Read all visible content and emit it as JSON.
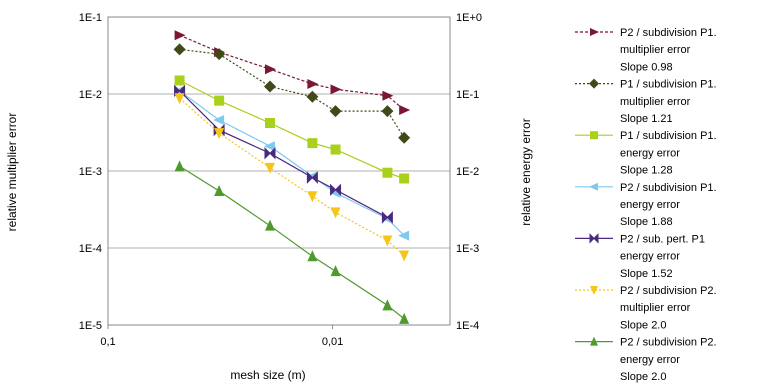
{
  "chart_data": {
    "type": "line",
    "xlabel": "mesh size (m)",
    "ylabel_left": "relative multiplier error",
    "ylabel_right": "relative energy error",
    "x_scale": "log",
    "x_reversed": true,
    "xlim": [
      0.1,
      0.003
    ],
    "x_ticks": [
      "0,1",
      "0,01"
    ],
    "y_scale_left": "log",
    "ylim_left": [
      1e-05,
      0.1
    ],
    "y_ticks_left": [
      "1E-1",
      "1E-2",
      "1E-3",
      "1E-4",
      "1E-5"
    ],
    "y_scale_right": "log",
    "ylim_right": [
      0.0001,
      1
    ],
    "y_ticks_right": [
      "1E+0",
      "1E-1",
      "1E-2",
      "1E-3",
      "1E-4"
    ],
    "grid": "horizontal",
    "legend_position": "right",
    "series": [
      {
        "name": "P2 / subdivision P1.",
        "legend_lines": [
          "P2 / subdivision P1.",
          "multiplier error",
          "Slope 0.98"
        ],
        "color": "#7B1733",
        "marker": "triangle-right",
        "line_style": "dashed",
        "axis": "left",
        "x": [
          0.048,
          0.032,
          0.019,
          0.0123,
          0.0097,
          0.0057,
          0.0048
        ],
        "y": [
          0.058,
          0.035,
          0.021,
          0.0135,
          0.0115,
          0.0095,
          0.0062
        ]
      },
      {
        "name": "P1 / subdivision P1.",
        "legend_lines": [
          "P1 / subdivision P1.",
          "multiplier error",
          "Slope 1.21"
        ],
        "color": "#3F4A18",
        "marker": "diamond",
        "line_style": "dotted",
        "axis": "left",
        "x": [
          0.048,
          0.032,
          0.019,
          0.0123,
          0.0097,
          0.0057,
          0.0048
        ],
        "y": [
          0.038,
          0.033,
          0.0125,
          0.0092,
          0.006,
          0.006,
          0.0027
        ]
      },
      {
        "name": "P1 / subdivision P1.",
        "legend_lines": [
          "P1 / subdivision P1.",
          "energy error",
          "Slope 1.28"
        ],
        "color": "#A9D01A",
        "marker": "square",
        "line_style": "solid",
        "axis": "right",
        "x": [
          0.048,
          0.032,
          0.019,
          0.0123,
          0.0097,
          0.0057,
          0.0048
        ],
        "y": [
          0.15,
          0.082,
          0.042,
          0.023,
          0.019,
          0.0095,
          0.008
        ]
      },
      {
        "name": "P2 / subdivision P1.",
        "legend_lines": [
          "P2 / subdivision P1.",
          "energy error",
          "Slope 1.88"
        ],
        "color": "#7FC8F0",
        "marker": "triangle-left",
        "line_style": "solid",
        "axis": "right",
        "x": [
          0.048,
          0.032,
          0.019,
          0.0123,
          0.0097,
          0.0057,
          0.0048
        ],
        "y": [
          0.11,
          0.046,
          0.021,
          0.0085,
          0.0052,
          0.0024,
          0.00145
        ]
      },
      {
        "name": "P2 / sub. pert. P1",
        "legend_lines": [
          "P2 / sub. pert. P1",
          "energy error",
          "Slope 1.52"
        ],
        "color": "#4B2A7E",
        "marker": "bowtie",
        "line_style": "solid",
        "axis": "right",
        "x": [
          0.048,
          0.032,
          0.019,
          0.0123,
          0.0097,
          0.0057
        ],
        "y": [
          0.11,
          0.034,
          0.017,
          0.0082,
          0.0057,
          0.0025
        ]
      },
      {
        "name": "P2 / subdivision P2.",
        "legend_lines": [
          "P2 / subdivision P2.",
          "multiplier error",
          "Slope 2.0"
        ],
        "color": "#F5C518",
        "marker": "triangle-down",
        "line_style": "dotted",
        "axis": "left",
        "x": [
          0.048,
          0.032,
          0.019,
          0.0123,
          0.0097,
          0.0057,
          0.0048
        ],
        "y": [
          0.0088,
          0.0031,
          0.0011,
          0.00047,
          0.00029,
          0.000125,
          8e-05
        ]
      },
      {
        "name": "P2 / subdivision P2.",
        "legend_lines": [
          "P2 / subdivision P2.",
          "energy error",
          "Slope 2.0"
        ],
        "color": "#4E9A2C",
        "marker": "triangle-up",
        "line_style": "solid",
        "axis": "right",
        "x": [
          0.048,
          0.032,
          0.019,
          0.0123,
          0.0097,
          0.0057,
          0.0048
        ],
        "y": [
          0.0115,
          0.0055,
          0.00195,
          0.00078,
          0.0005,
          0.00018,
          0.00012
        ]
      }
    ]
  }
}
